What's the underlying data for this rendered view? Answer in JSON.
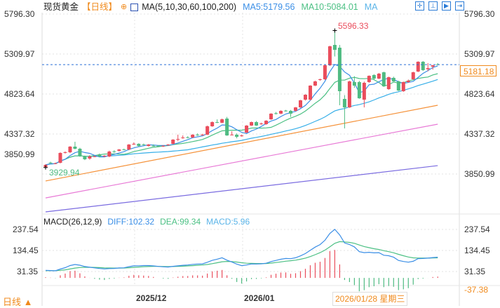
{
  "header": {
    "symbol": "现货黄金",
    "period": "【日线】",
    "ma_title": "MA(5,10,30,60,100,200)",
    "ma5": "MA5:5179.56",
    "ma10": "MA10:5084.01",
    "ma_more": "MA",
    "toolbar_icons": [
      "crosshair-icon",
      "range-icon",
      "play-icon",
      "exit-icon"
    ]
  },
  "price_axis": {
    "labels": [
      "5796.30",
      "5309.97",
      "4823.64",
      "4337.32",
      "3850.99"
    ],
    "current_price": "5181.18",
    "high_label": "5596.33",
    "low_label": "3929.94"
  },
  "macd": {
    "title": "MACD(26,12,9)",
    "diff": "DIFF:102.32",
    "dea": "DEA:99.34",
    "macd": "MACD:5.96",
    "axis_labels": [
      "237.54",
      "134.45",
      "31.35",
      "-37.38"
    ]
  },
  "time_axis": {
    "labels": [
      "2025/12",
      "2026/01"
    ],
    "cursor_date": "2026/01/28 星期三"
  },
  "footer": {
    "period_button": "日线 ▲"
  },
  "colors": {
    "up": "#ea4d5c",
    "down": "#4fbb82",
    "ma5": "#3a8ee6",
    "ma10": "#4cc084",
    "ma30": "#35aee8",
    "ma60": "#f5923a",
    "ma100": "#e87ad6",
    "ma200": "#7a6be0",
    "period": "#f08a1c",
    "high": "#ea4d5c",
    "low": "#4fbb82"
  },
  "chart_data": {
    "type": "candlestick",
    "ohlc": [
      [
        3936,
        3970,
        3930,
        3962
      ],
      [
        3990,
        4000,
        3975,
        3985
      ],
      [
        3975,
        3990,
        3970,
        3982
      ],
      [
        3987,
        4115,
        3980,
        4107
      ],
      [
        4108,
        4125,
        4100,
        4117
      ],
      [
        4115,
        4190,
        4105,
        4184
      ],
      [
        4184,
        4243,
        4150,
        4158
      ],
      [
        4158,
        4170,
        4060,
        4073
      ],
      [
        4064,
        4075,
        4020,
        4030
      ],
      [
        4039,
        4080,
        4025,
        4064
      ],
      [
        4060,
        4075,
        4055,
        4066
      ],
      [
        4090,
        4100,
        4055,
        4064
      ],
      [
        4068,
        4080,
        4055,
        4073
      ],
      [
        4064,
        4135,
        4055,
        4124
      ],
      [
        4126,
        4140,
        4110,
        4120
      ],
      [
        4132,
        4155,
        4125,
        4149
      ],
      [
        4150,
        4160,
        4140,
        4146
      ],
      [
        4149,
        4215,
        4140,
        4209
      ],
      [
        4210,
        4235,
        4205,
        4218
      ],
      [
        4218,
        4225,
        4180,
        4192
      ],
      [
        4212,
        4220,
        4195,
        4205
      ],
      [
        4192,
        4215,
        4185,
        4209
      ],
      [
        4195,
        4210,
        4185,
        4192
      ],
      [
        4195,
        4200,
        4185,
        4190
      ],
      [
        4188,
        4200,
        4180,
        4194
      ],
      [
        4205,
        4215,
        4195,
        4209
      ],
      [
        4218,
        4275,
        4212,
        4269
      ],
      [
        4272,
        4330,
        4250,
        4277
      ],
      [
        4290,
        4320,
        4280,
        4295
      ],
      [
        4298,
        4310,
        4285,
        4292
      ],
      [
        4295,
        4335,
        4290,
        4329
      ],
      [
        4330,
        4345,
        4315,
        4325
      ],
      [
        4325,
        4340,
        4318,
        4330
      ],
      [
        4329,
        4440,
        4325,
        4431
      ],
      [
        4431,
        4490,
        4425,
        4482
      ],
      [
        4482,
        4515,
        4470,
        4476
      ],
      [
        4474,
        4525,
        4470,
        4516
      ],
      [
        4525,
        4545,
        4315,
        4320
      ],
      [
        4325,
        4370,
        4320,
        4330
      ],
      [
        4329,
        4345,
        4285,
        4303
      ],
      [
        4315,
        4330,
        4305,
        4320
      ],
      [
        4354,
        4445,
        4350,
        4440
      ],
      [
        4440,
        4488,
        4435,
        4482
      ],
      [
        4482,
        4495,
        4435,
        4440
      ],
      [
        4460,
        4475,
        4450,
        4465
      ],
      [
        4457,
        4505,
        4450,
        4499
      ],
      [
        4516,
        4590,
        4510,
        4585
      ],
      [
        4590,
        4605,
        4575,
        4582
      ],
      [
        4585,
        4625,
        4580,
        4619
      ],
      [
        4622,
        4630,
        4610,
        4617
      ],
      [
        4619,
        4630,
        4545,
        4585
      ],
      [
        4619,
        4665,
        4612,
        4661
      ],
      [
        4661,
        4752,
        4655,
        4747
      ],
      [
        4755,
        4820,
        4745,
        4815
      ],
      [
        4755,
        4930,
        4745,
        4926
      ],
      [
        4926,
        4985,
        4920,
        4977
      ],
      [
        4995,
        5010,
        4985,
        5003
      ],
      [
        5003,
        5180,
        4995,
        5173
      ],
      [
        5173,
        5410,
        5165,
        5404
      ],
      [
        5421,
        5596,
        5280,
        5361
      ],
      [
        5387,
        5420,
        4687,
        4858
      ],
      [
        4764,
        4810,
        4405,
        4661
      ],
      [
        4661,
        4985,
        4655,
        4977
      ],
      [
        4969,
        5040,
        4900,
        4926
      ],
      [
        4969,
        4985,
        4765,
        4772
      ],
      [
        4755,
        4975,
        4661,
        4960
      ],
      [
        4969,
        5050,
        4960,
        5045
      ],
      [
        5054,
        5065,
        5000,
        5011
      ],
      [
        5011,
        5080,
        5005,
        5071
      ],
      [
        5088,
        5095,
        4910,
        4917
      ],
      [
        4883,
        5035,
        4875,
        5028
      ],
      [
        5020,
        5035,
        4975,
        4977
      ],
      [
        4977,
        4985,
        4860,
        4866
      ],
      [
        4858,
        4975,
        4850,
        4969
      ],
      [
        4969,
        5000,
        4960,
        4986
      ],
      [
        5003,
        5095,
        4995,
        5088
      ],
      [
        5097,
        5222,
        5090,
        5216
      ],
      [
        5216,
        5225,
        5105,
        5114
      ],
      [
        5125,
        5200,
        5100,
        5139
      ],
      [
        5156,
        5175,
        5120,
        5173
      ],
      [
        5185,
        5200,
        5175,
        5181
      ]
    ],
    "long_ma": {
      "ma60": [
        3766,
        4687
      ],
      "ma100": [
        3560,
        4457
      ],
      "ma200": [
        3390,
        3953
      ]
    },
    "price_range": [
      3850.99,
      5796.3
    ],
    "macd_range": [
      -37.38,
      237.54
    ]
  }
}
